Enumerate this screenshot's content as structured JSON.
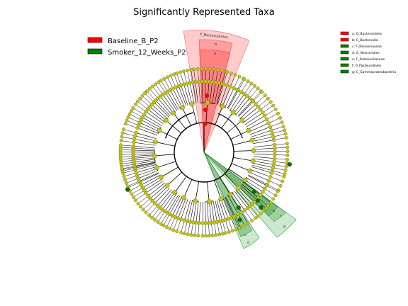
{
  "title": "Significantly Represented Taxa",
  "classes": [
    {
      "name": "Baseline_B_P2",
      "color": "#ff0000"
    },
    {
      "name": "Smoker_12_Weeks_P2",
      "color": "#008000"
    }
  ],
  "taxa_key": [
    {
      "label": "a: O_Bacteroidales",
      "class": 0
    },
    {
      "label": "b: C_Bacteroidia",
      "class": 0
    },
    {
      "label": "c: F_Neisseriaceae",
      "class": 1
    },
    {
      "label": "d: O_Neisseriales",
      "class": 1
    },
    {
      "label": "e: F_Pasteurellaceae",
      "class": 1
    },
    {
      "label": "f: O_Pasteurellales",
      "class": 1
    },
    {
      "label": "g: C_Gammaproteobacteria",
      "class": 1
    }
  ],
  "clade_labels": {
    "bacteroidetes": "P_Bacteroidetes",
    "a": "a",
    "b": "b",
    "c": "c",
    "d": "d",
    "e": "e",
    "f": "f",
    "g": "g"
  },
  "colors": {
    "node_default": "#c5c51a",
    "node_stroke": "#555500",
    "edge": "#000000",
    "red_node": "#ff0000",
    "green_node": "#007000"
  }
}
